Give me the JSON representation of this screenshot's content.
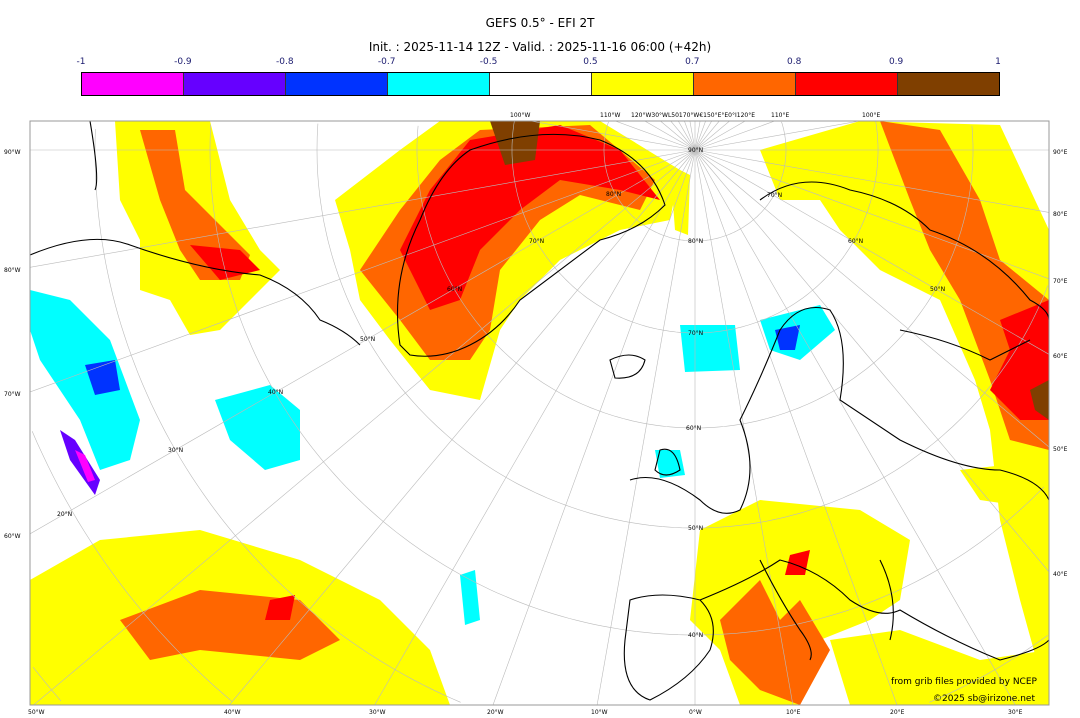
{
  "title": "GEFS 0.5° - EFI 2T",
  "subtitle": "Init. : 2025-11-14 12Z - Valid. : 2025-11-16 06:00 (+42h)",
  "colorbar": {
    "ticks": [
      "-1",
      "-0.9",
      "-0.8",
      "-0.7",
      "-0.5",
      "0.5",
      "0.7",
      "0.8",
      "0.9",
      "1"
    ],
    "colors": [
      "#ff00ff",
      "#6600ff",
      "#0033ff",
      "#00ffff",
      "#ffffff",
      "#ffff00",
      "#ff6600",
      "#ff0000",
      "#7f3f00"
    ]
  },
  "axes": {
    "left": [
      "90°W",
      "80°W",
      "70°W",
      "60°W"
    ],
    "right": [
      "90°E",
      "80°E",
      "70°E",
      "60°E",
      "50°E",
      "40°E"
    ],
    "bottom": [
      "50°W",
      "40°W",
      "30°W",
      "20°W",
      "10°W",
      "0°W",
      "10°E",
      "20°E",
      "30°E"
    ],
    "top": [
      "100°W",
      "110°W",
      "120°W30°WL50170°W€150°E°E0°I120°E",
      "110°E",
      "100°E"
    ]
  },
  "lat_labels": [
    "90°N",
    "80°N",
    "70°N",
    "60°N",
    "50°N",
    "40°N",
    "30°N",
    "20°N",
    "80°N",
    "70°N",
    "60°N",
    "50°N",
    "70°N",
    "60°N",
    "50°N",
    "40°N"
  ],
  "credits": {
    "source": "from grib files provided by NCEP",
    "copyright": "©2025 sb@irizone.net"
  }
}
